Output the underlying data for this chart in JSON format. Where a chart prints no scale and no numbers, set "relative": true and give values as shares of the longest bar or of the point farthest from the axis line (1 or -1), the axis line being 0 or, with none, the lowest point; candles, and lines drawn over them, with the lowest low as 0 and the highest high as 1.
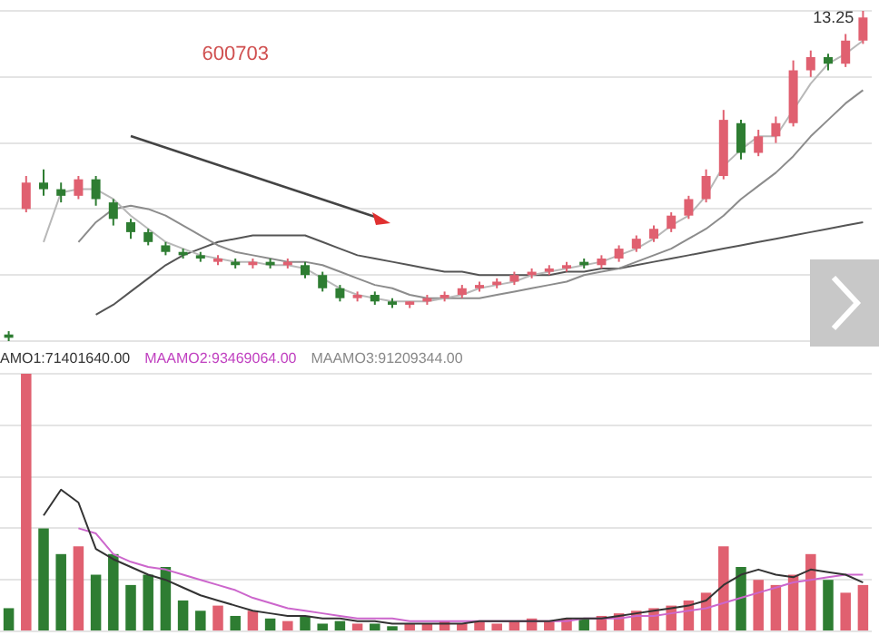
{
  "chart_data": [
    {
      "type": "candlestick",
      "relative": true,
      "grid": "y",
      "categories": [
        null,
        null,
        null,
        null,
        null,
        null,
        null,
        null,
        null,
        null,
        null,
        null,
        null,
        null,
        null,
        null,
        null,
        null,
        null,
        null,
        null,
        null,
        null,
        null,
        null,
        null,
        null,
        null,
        null,
        null,
        null,
        null,
        null,
        null,
        null,
        null,
        null,
        null,
        null,
        null,
        null,
        null,
        null,
        null,
        null,
        null,
        null,
        null,
        null,
        null
      ],
      "ohlc": [
        [
          0.02,
          0.03,
          0,
          0.01
        ],
        [
          0.4,
          0.5,
          0.39,
          0.48
        ],
        [
          0.48,
          0.52,
          0.44,
          0.46
        ],
        [
          0.46,
          0.48,
          0.42,
          0.44
        ],
        [
          0.44,
          0.5,
          0.43,
          0.49
        ],
        [
          0.49,
          0.5,
          0.41,
          0.43
        ],
        [
          0.42,
          0.43,
          0.35,
          0.37
        ],
        [
          0.36,
          0.37,
          0.31,
          0.33
        ],
        [
          0.33,
          0.34,
          0.29,
          0.3
        ],
        [
          0.29,
          0.3,
          0.26,
          0.27
        ],
        [
          0.27,
          0.28,
          0.25,
          0.26
        ],
        [
          0.26,
          0.27,
          0.24,
          0.25
        ],
        [
          0.24,
          0.26,
          0.23,
          0.25
        ],
        [
          0.24,
          0.25,
          0.22,
          0.23
        ],
        [
          0.23,
          0.25,
          0.22,
          0.24
        ],
        [
          0.24,
          0.25,
          0.22,
          0.23
        ],
        [
          0.23,
          0.25,
          0.22,
          0.24
        ],
        [
          0.23,
          0.24,
          0.19,
          0.2
        ],
        [
          0.2,
          0.21,
          0.15,
          0.16
        ],
        [
          0.16,
          0.17,
          0.12,
          0.13
        ],
        [
          0.13,
          0.15,
          0.12,
          0.14
        ],
        [
          0.14,
          0.15,
          0.11,
          0.12
        ],
        [
          0.12,
          0.13,
          0.1,
          0.11
        ],
        [
          0.11,
          0.12,
          0.1,
          0.12
        ],
        [
          0.12,
          0.14,
          0.11,
          0.13
        ],
        [
          0.13,
          0.15,
          0.12,
          0.14
        ],
        [
          0.14,
          0.17,
          0.13,
          0.16
        ],
        [
          0.16,
          0.18,
          0.15,
          0.17
        ],
        [
          0.17,
          0.19,
          0.16,
          0.18
        ],
        [
          0.18,
          0.21,
          0.17,
          0.2
        ],
        [
          0.2,
          0.22,
          0.19,
          0.21
        ],
        [
          0.21,
          0.23,
          0.2,
          0.22
        ],
        [
          0.22,
          0.24,
          0.21,
          0.23
        ],
        [
          0.24,
          0.25,
          0.22,
          0.23
        ],
        [
          0.23,
          0.26,
          0.22,
          0.25
        ],
        [
          0.25,
          0.29,
          0.24,
          0.28
        ],
        [
          0.28,
          0.32,
          0.27,
          0.31
        ],
        [
          0.31,
          0.35,
          0.3,
          0.34
        ],
        [
          0.34,
          0.39,
          0.33,
          0.38
        ],
        [
          0.38,
          0.44,
          0.37,
          0.43
        ],
        [
          0.43,
          0.52,
          0.42,
          0.5
        ],
        [
          0.5,
          0.7,
          0.49,
          0.67
        ],
        [
          0.66,
          0.67,
          0.55,
          0.57
        ],
        [
          0.57,
          0.64,
          0.56,
          0.62
        ],
        [
          0.62,
          0.68,
          0.6,
          0.66
        ],
        [
          0.66,
          0.85,
          0.65,
          0.82
        ],
        [
          0.82,
          0.88,
          0.8,
          0.86
        ],
        [
          0.86,
          0.87,
          0.82,
          0.84
        ],
        [
          0.84,
          0.93,
          0.83,
          0.91
        ],
        [
          0.91,
          1,
          0.9,
          0.98
        ]
      ],
      "colors": [
        "#2e7d32",
        "#e06070",
        "#2e7d32",
        "#2e7d32",
        "#e06070",
        "#2e7d32",
        "#2e7d32",
        "#2e7d32",
        "#2e7d32",
        "#2e7d32",
        "#2e7d32",
        "#2e7d32",
        "#e06070",
        "#2e7d32",
        "#e06070",
        "#2e7d32",
        "#e06070",
        "#2e7d32",
        "#2e7d32",
        "#2e7d32",
        "#e06070",
        "#2e7d32",
        "#2e7d32",
        "#e06070",
        "#e06070",
        "#e06070",
        "#e06070",
        "#e06070",
        "#e06070",
        "#e06070",
        "#e06070",
        "#e06070",
        "#e06070",
        "#2e7d32",
        "#e06070",
        "#e06070",
        "#e06070",
        "#e06070",
        "#e06070",
        "#e06070",
        "#e06070",
        "#e06070",
        "#2e7d32",
        "#e06070",
        "#e06070",
        "#e06070",
        "#e06070",
        "#2e7d32",
        "#e06070",
        "#e06070"
      ],
      "series": [
        {
          "type": "line",
          "color": "#b8b8b8",
          "values": [
            null,
            null,
            0.3,
            0.45,
            0.46,
            0.46,
            0.43,
            0.38,
            0.34,
            0.3,
            0.28,
            0.26,
            0.25,
            0.24,
            0.24,
            0.23,
            0.23,
            0.22,
            0.19,
            0.16,
            0.14,
            0.13,
            0.12,
            0.12,
            0.12,
            0.13,
            0.14,
            0.16,
            0.17,
            0.18,
            0.2,
            0.21,
            0.22,
            0.23,
            0.24,
            0.26,
            0.28,
            0.31,
            0.35,
            0.38,
            0.44,
            0.53,
            0.58,
            0.62,
            0.62,
            0.7,
            0.78,
            0.84,
            0.87,
            0.91
          ]
        },
        {
          "type": "line",
          "color": "#8c8c8c",
          "values": [
            null,
            null,
            null,
            null,
            0.3,
            0.36,
            0.4,
            0.41,
            0.4,
            0.38,
            0.35,
            0.32,
            0.29,
            0.27,
            0.26,
            0.25,
            0.24,
            0.24,
            0.23,
            0.21,
            0.19,
            0.17,
            0.16,
            0.14,
            0.13,
            0.13,
            0.13,
            0.13,
            0.14,
            0.15,
            0.16,
            0.17,
            0.18,
            0.2,
            0.21,
            0.22,
            0.24,
            0.26,
            0.28,
            0.31,
            0.34,
            0.38,
            0.43,
            0.47,
            0.51,
            0.56,
            0.62,
            0.67,
            0.72,
            0.76
          ]
        },
        {
          "type": "line",
          "color": "#555555",
          "values": [
            null,
            null,
            null,
            null,
            null,
            0.08,
            0.11,
            0.15,
            0.19,
            0.23,
            0.26,
            0.28,
            0.3,
            0.31,
            0.32,
            0.32,
            0.32,
            0.32,
            0.3,
            0.28,
            0.26,
            0.25,
            0.24,
            0.23,
            0.22,
            0.21,
            0.21,
            0.2,
            0.2,
            0.2,
            0.2,
            0.2,
            0.21,
            0.21,
            0.22,
            0.22,
            0.23,
            0.24,
            0.25,
            0.26,
            0.27,
            0.28,
            0.29,
            0.3,
            0.31,
            0.32,
            0.33,
            0.34,
            0.35,
            0.36
          ]
        }
      ],
      "annotations": [
        "600703",
        "13.25"
      ]
    },
    {
      "type": "bar",
      "relative": true,
      "grid": "y",
      "categories": [
        null,
        null,
        null,
        null,
        null,
        null,
        null,
        null,
        null,
        null,
        null,
        null,
        null,
        null,
        null,
        null,
        null,
        null,
        null,
        null,
        null,
        null,
        null,
        null,
        null,
        null,
        null,
        null,
        null,
        null,
        null,
        null,
        null,
        null,
        null,
        null,
        null,
        null,
        null,
        null,
        null,
        null,
        null,
        null,
        null,
        null,
        null,
        null,
        null,
        null
      ],
      "series": [
        {
          "values": [
            0.09,
            1,
            0.4,
            0.3,
            0.33,
            0.22,
            0.3,
            0.18,
            0.22,
            0.25,
            0.12,
            0.08,
            0.1,
            0.06,
            0.08,
            0.05,
            0.04,
            0.06,
            0.03,
            0.04,
            0.03,
            0.03,
            0.02,
            0.03,
            0.03,
            0.04,
            0.03,
            0.04,
            0.03,
            0.04,
            0.05,
            0.04,
            0.05,
            0.05,
            0.06,
            0.07,
            0.08,
            0.09,
            0.1,
            0.12,
            0.15,
            0.33,
            0.25,
            0.2,
            0.18,
            0.22,
            0.3,
            0.2,
            0.15,
            0.18
          ],
          "colors": [
            "#2e7d32",
            "#e06070",
            "#2e7d32",
            "#2e7d32",
            "#e06070",
            "#2e7d32",
            "#2e7d32",
            "#2e7d32",
            "#2e7d32",
            "#2e7d32",
            "#2e7d32",
            "#2e7d32",
            "#e06070",
            "#2e7d32",
            "#e06070",
            "#2e7d32",
            "#e06070",
            "#2e7d32",
            "#2e7d32",
            "#2e7d32",
            "#e06070",
            "#2e7d32",
            "#2e7d32",
            "#e06070",
            "#e06070",
            "#e06070",
            "#e06070",
            "#e06070",
            "#e06070",
            "#e06070",
            "#e06070",
            "#e06070",
            "#e06070",
            "#2e7d32",
            "#e06070",
            "#e06070",
            "#e06070",
            "#e06070",
            "#e06070",
            "#e06070",
            "#e06070",
            "#e06070",
            "#2e7d32",
            "#e06070",
            "#e06070",
            "#e06070",
            "#e06070",
            "#2e7d32",
            "#e06070",
            "#e06070"
          ]
        },
        {
          "type": "line",
          "color": "#333333",
          "values": [
            null,
            null,
            0.45,
            0.55,
            0.5,
            0.32,
            0.28,
            0.25,
            0.22,
            0.2,
            0.17,
            0.14,
            0.12,
            0.1,
            0.08,
            0.07,
            0.06,
            0.06,
            0.05,
            0.05,
            0.04,
            0.04,
            0.03,
            0.03,
            0.03,
            0.03,
            0.03,
            0.04,
            0.04,
            0.04,
            0.04,
            0.04,
            0.05,
            0.05,
            0.05,
            0.06,
            0.07,
            0.08,
            0.09,
            0.1,
            0.12,
            0.18,
            0.22,
            0.24,
            0.22,
            0.21,
            0.24,
            0.23,
            0.22,
            0.19
          ]
        },
        {
          "type": "line",
          "color": "#cc66cc",
          "values": [
            null,
            null,
            null,
            null,
            0.4,
            0.38,
            0.3,
            0.27,
            0.25,
            0.24,
            0.22,
            0.2,
            0.18,
            0.16,
            0.13,
            0.11,
            0.09,
            0.08,
            0.07,
            0.06,
            0.05,
            0.05,
            0.05,
            0.04,
            0.04,
            0.04,
            0.04,
            0.04,
            0.04,
            0.04,
            0.04,
            0.04,
            0.04,
            0.05,
            0.05,
            0.05,
            0.06,
            0.06,
            0.07,
            0.08,
            0.09,
            0.11,
            0.13,
            0.15,
            0.17,
            0.19,
            0.2,
            0.21,
            0.22,
            0.22
          ]
        }
      ],
      "annotations": [
        "AMO1:71401640.00",
        "MAAMO2:93469064.00",
        "MAAMO3:91209344.00"
      ]
    }
  ]
}
